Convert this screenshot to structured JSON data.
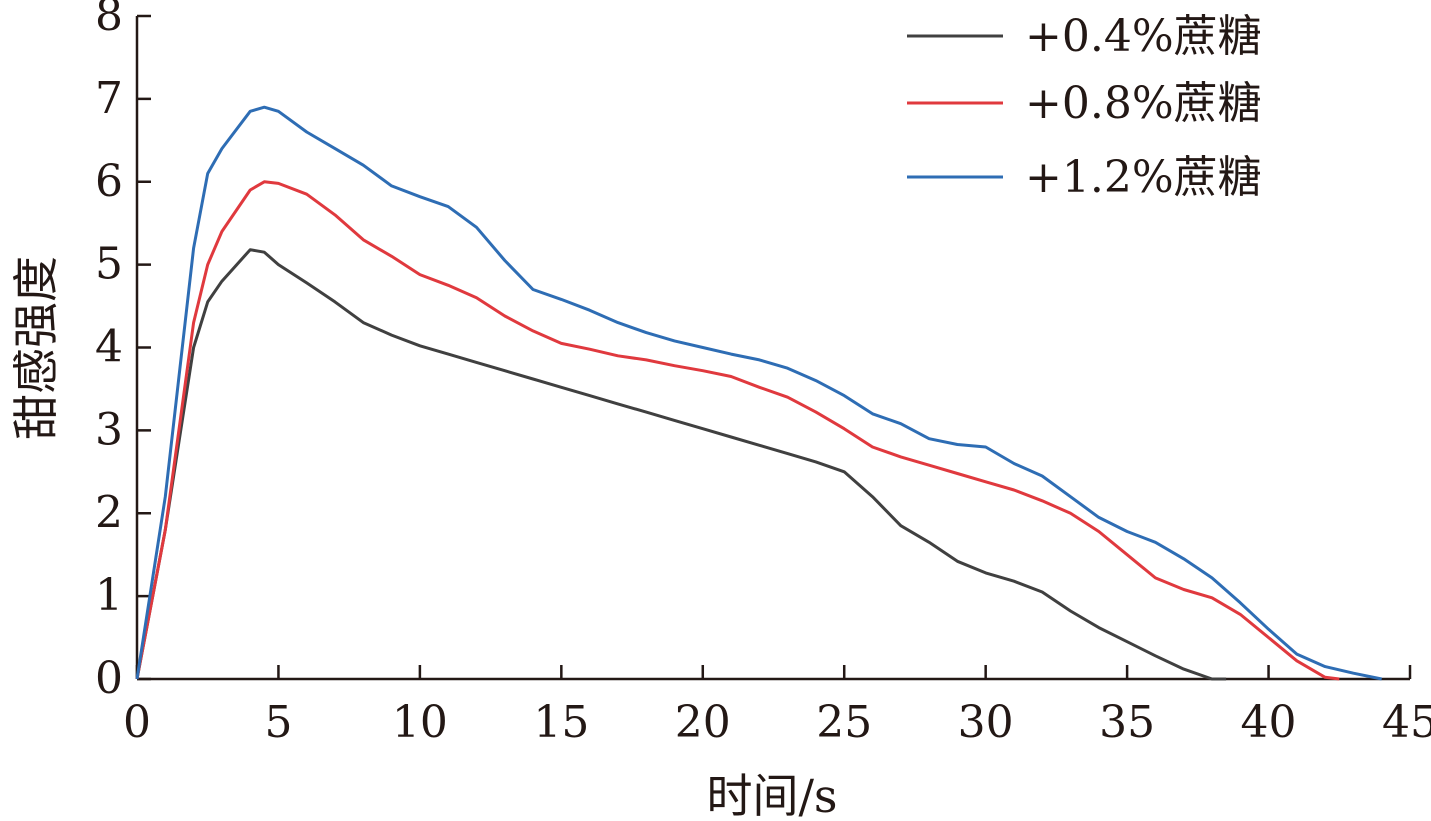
{
  "chart_data": {
    "type": "line",
    "title": "",
    "xlabel": "时间/s",
    "ylabel": "甜感强度",
    "xlim": [
      0,
      45
    ],
    "ylim": [
      0,
      8
    ],
    "xticks": [
      0,
      5,
      10,
      15,
      20,
      25,
      30,
      35,
      40,
      45
    ],
    "yticks": [
      0,
      1,
      2,
      3,
      4,
      5,
      6,
      7,
      8
    ],
    "grid": false,
    "legend_position": "top-right",
    "series": [
      {
        "name": "+0.4%蔗糖",
        "color": "#404040",
        "x": [
          0,
          1,
          2,
          2.5,
          3,
          4,
          4.5,
          5,
          6,
          7,
          8,
          9,
          10,
          11,
          12,
          13,
          14,
          15,
          16,
          17,
          18,
          19,
          20,
          21,
          22,
          23,
          24,
          25,
          26,
          27,
          28,
          29,
          30,
          31,
          32,
          33,
          34,
          35,
          36,
          37,
          38,
          38.5
        ],
        "y": [
          0,
          1.8,
          4.0,
          4.55,
          4.8,
          5.18,
          5.15,
          5.0,
          4.78,
          4.55,
          4.3,
          4.15,
          4.02,
          3.92,
          3.82,
          3.72,
          3.62,
          3.52,
          3.42,
          3.32,
          3.22,
          3.12,
          3.02,
          2.92,
          2.82,
          2.72,
          2.62,
          2.5,
          2.2,
          1.85,
          1.65,
          1.42,
          1.28,
          1.18,
          1.05,
          0.82,
          0.62,
          0.45,
          0.28,
          0.12,
          0,
          0
        ]
      },
      {
        "name": "+0.8%蔗糖",
        "color": "#e0393e",
        "x": [
          0,
          1,
          2,
          2.5,
          3,
          4,
          4.5,
          5,
          6,
          7,
          8,
          9,
          10,
          11,
          12,
          13,
          14,
          15,
          16,
          17,
          18,
          19,
          20,
          21,
          22,
          23,
          24,
          25,
          26,
          27,
          28,
          29,
          30,
          31,
          32,
          33,
          34,
          35,
          36,
          37,
          38,
          39,
          40,
          41,
          42,
          42.5
        ],
        "y": [
          0,
          1.8,
          4.3,
          5.0,
          5.4,
          5.9,
          6.0,
          5.98,
          5.85,
          5.6,
          5.3,
          5.1,
          4.88,
          4.75,
          4.6,
          4.38,
          4.2,
          4.05,
          3.98,
          3.9,
          3.85,
          3.78,
          3.72,
          3.65,
          3.52,
          3.4,
          3.22,
          3.02,
          2.8,
          2.68,
          2.58,
          2.48,
          2.38,
          2.28,
          2.15,
          2.0,
          1.78,
          1.5,
          1.22,
          1.08,
          0.98,
          0.78,
          0.5,
          0.22,
          0.02,
          0
        ]
      },
      {
        "name": "+1.2%蔗糖",
        "color": "#2e6db4",
        "x": [
          0,
          1,
          2,
          2.5,
          3,
          4,
          4.5,
          5,
          6,
          7,
          8,
          9,
          10,
          11,
          12,
          13,
          14,
          15,
          16,
          17,
          18,
          19,
          20,
          21,
          22,
          23,
          24,
          25,
          26,
          27,
          28,
          29,
          30,
          31,
          32,
          33,
          34,
          35,
          36,
          37,
          38,
          39,
          40,
          41,
          42,
          43,
          44
        ],
        "y": [
          0,
          2.2,
          5.2,
          6.1,
          6.4,
          6.85,
          6.9,
          6.85,
          6.6,
          6.4,
          6.2,
          5.95,
          5.82,
          5.7,
          5.45,
          5.05,
          4.7,
          4.58,
          4.45,
          4.3,
          4.18,
          4.08,
          4.0,
          3.92,
          3.85,
          3.75,
          3.6,
          3.42,
          3.2,
          3.08,
          2.9,
          2.83,
          2.8,
          2.6,
          2.45,
          2.2,
          1.95,
          1.78,
          1.65,
          1.45,
          1.22,
          0.92,
          0.6,
          0.3,
          0.15,
          0.07,
          0
        ]
      }
    ]
  }
}
